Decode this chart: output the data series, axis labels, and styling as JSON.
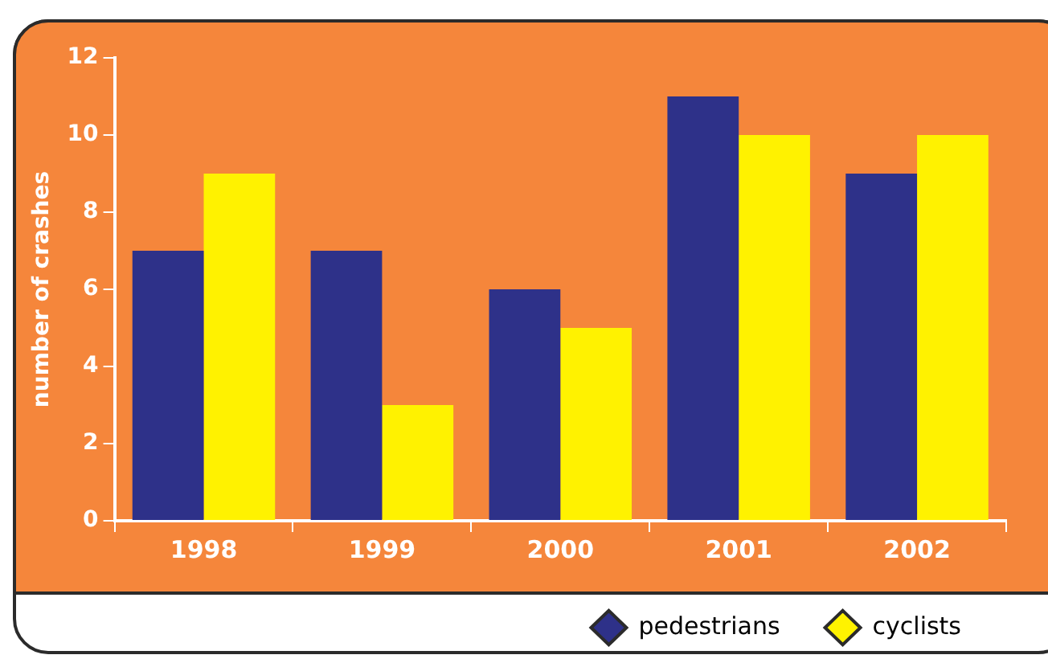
{
  "chart_data": {
    "type": "bar",
    "ylabel": "number of crashes",
    "categories": [
      "1998",
      "1999",
      "2000",
      "2001",
      "2002"
    ],
    "series": [
      {
        "name": "pedestrians",
        "color": "#2e3189",
        "values": [
          7,
          7,
          6,
          11,
          9
        ]
      },
      {
        "name": "cyclists",
        "color": "#fff200",
        "values": [
          9,
          3,
          5,
          10,
          10
        ]
      }
    ],
    "ylim": [
      0,
      12
    ],
    "yticks": [
      0,
      2,
      4,
      6,
      8,
      10,
      12
    ],
    "grid": false,
    "legend": "bottom right",
    "marker": "diamond"
  }
}
